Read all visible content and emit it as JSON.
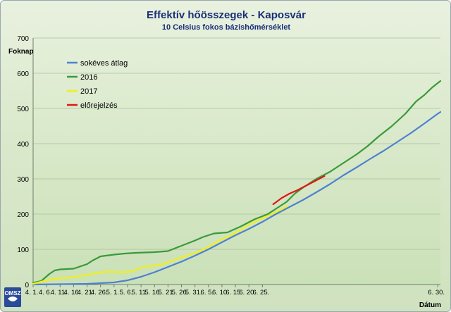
{
  "chart_data": {
    "type": "line",
    "title": "Effektív hőösszegek - Kaposvár",
    "subtitle": "10 Celsius fokos bázishőmérséklet",
    "ylabel": "Foknap",
    "xlabel": "Dátum",
    "ylim": [
      0,
      700
    ],
    "yticks": [
      0,
      100,
      200,
      300,
      400,
      500,
      600,
      700
    ],
    "xticks": [
      "4. 1.",
      "4. 6.",
      "4. 11.",
      "4. 16.",
      "4. 21.",
      "4. 26.",
      "5. 1.",
      "5. 6.",
      "5. 11.",
      "5. 16.",
      "5. 21.",
      "5. 26.",
      "5. 31.",
      "6. 5.",
      "6. 10.",
      "6. 15.",
      "6. 20.",
      "6. 25.",
      "6. 30."
    ],
    "grid": true,
    "legend_position": "top-left",
    "series": [
      {
        "name": "sokéves átlag",
        "color": "#4f81d1",
        "points": [
          [
            0,
            0
          ],
          [
            10,
            1
          ],
          [
            20,
            2
          ],
          [
            30,
            6
          ],
          [
            35,
            12
          ],
          [
            40,
            22
          ],
          [
            45,
            35
          ],
          [
            50,
            50
          ],
          [
            55,
            65
          ],
          [
            60,
            82
          ],
          [
            65,
            100
          ],
          [
            70,
            120
          ],
          [
            75,
            140
          ],
          [
            80,
            158
          ],
          [
            85,
            178
          ],
          [
            90,
            200
          ],
          [
            95,
            220
          ],
          [
            100,
            240
          ],
          [
            105,
            262
          ],
          [
            110,
            285
          ],
          [
            115,
            310
          ],
          [
            120,
            333
          ],
          [
            125,
            357
          ],
          [
            130,
            380
          ],
          [
            135,
            405
          ],
          [
            140,
            430
          ],
          [
            145,
            457
          ],
          [
            150,
            485
          ],
          [
            151,
            490
          ]
        ]
      },
      {
        "name": "2016",
        "color": "#3a9a3a",
        "points": [
          [
            0,
            5
          ],
          [
            3,
            10
          ],
          [
            6,
            30
          ],
          [
            8,
            40
          ],
          [
            10,
            43
          ],
          [
            15,
            45
          ],
          [
            20,
            58
          ],
          [
            22,
            68
          ],
          [
            25,
            80
          ],
          [
            30,
            85
          ],
          [
            34,
            88
          ],
          [
            38,
            90
          ],
          [
            45,
            92
          ],
          [
            50,
            95
          ],
          [
            55,
            110
          ],
          [
            60,
            125
          ],
          [
            63,
            135
          ],
          [
            67,
            145
          ],
          [
            72,
            148
          ],
          [
            77,
            165
          ],
          [
            82,
            185
          ],
          [
            87,
            200
          ],
          [
            90,
            215
          ],
          [
            94,
            235
          ],
          [
            97,
            258
          ],
          [
            100,
            275
          ],
          [
            105,
            300
          ],
          [
            110,
            320
          ],
          [
            115,
            345
          ],
          [
            120,
            370
          ],
          [
            124,
            393
          ],
          [
            128,
            420
          ],
          [
            133,
            450
          ],
          [
            138,
            485
          ],
          [
            142,
            520
          ],
          [
            145,
            538
          ],
          [
            148,
            560
          ],
          [
            151,
            578
          ]
        ]
      },
      {
        "name": "2017",
        "color": "#f2ef1a",
        "points": [
          [
            0,
            2
          ],
          [
            5,
            12
          ],
          [
            10,
            18
          ],
          [
            14,
            20
          ],
          [
            18,
            25
          ],
          [
            22,
            30
          ],
          [
            25,
            35
          ],
          [
            28,
            36
          ],
          [
            33,
            35
          ],
          [
            36,
            36
          ],
          [
            39,
            45
          ],
          [
            42,
            52
          ],
          [
            45,
            53
          ],
          [
            49,
            60
          ],
          [
            53,
            72
          ],
          [
            57,
            82
          ],
          [
            61,
            92
          ],
          [
            65,
            107
          ],
          [
            69,
            125
          ],
          [
            73,
            138
          ],
          [
            77,
            155
          ],
          [
            80,
            170
          ],
          [
            84,
            185
          ],
          [
            88,
            198
          ],
          [
            92,
            213
          ],
          [
            94,
            222
          ]
        ]
      },
      {
        "name": "előrejelzés",
        "color": "#e01818",
        "points": [
          [
            89,
            228
          ],
          [
            92,
            245
          ],
          [
            95,
            258
          ],
          [
            98,
            268
          ],
          [
            101,
            280
          ],
          [
            104,
            292
          ],
          [
            106,
            300
          ],
          [
            108,
            308
          ]
        ]
      }
    ]
  }
}
